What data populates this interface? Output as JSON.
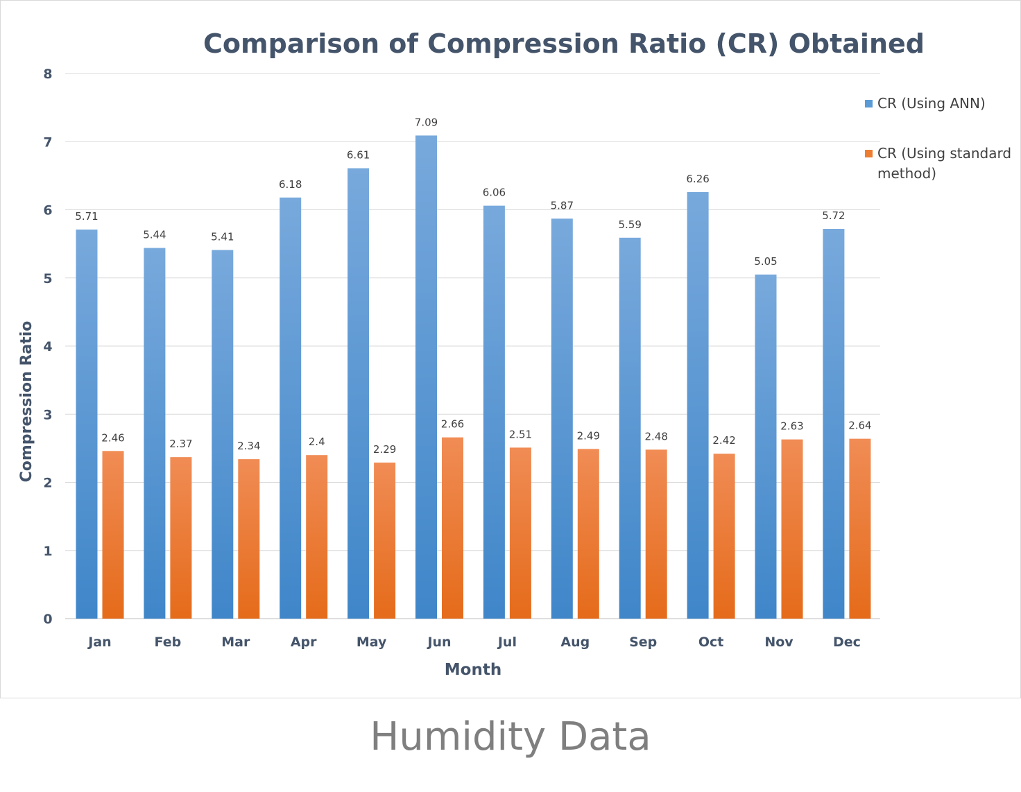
{
  "chart_data": {
    "type": "bar",
    "title": "Comparison of Compression Ratio (CR) Obtained",
    "xlabel": "Month",
    "ylabel": "Compression Ratio",
    "ylim": [
      0,
      8
    ],
    "yticks": [
      "0",
      "1",
      "2",
      "3",
      "4",
      "5",
      "6",
      "7",
      "8"
    ],
    "grid": true,
    "legend_position": "right",
    "categories": [
      "Jan",
      "Feb",
      "Mar",
      "Apr",
      "May",
      "Jun",
      "Jul",
      "Aug",
      "Sep",
      "Oct",
      "Nov",
      "Dec"
    ],
    "series": [
      {
        "name": "CR (Using ANN)",
        "color": "#5b9bd5",
        "values": [
          5.71,
          5.44,
          5.41,
          6.18,
          6.61,
          7.09,
          6.06,
          5.87,
          5.59,
          6.26,
          5.05,
          5.72
        ],
        "labels": [
          "5.71",
          "5.44",
          "5.41",
          "6.18",
          "6.61",
          "7.09",
          "6.06",
          "5.87",
          "5.59",
          "6.26",
          "5.05",
          "5.72"
        ]
      },
      {
        "name": "CR (Using standard method)",
        "name_lines": [
          "CR (Using standard",
          "method)"
        ],
        "color": "#ed7d31",
        "values": [
          2.46,
          2.37,
          2.34,
          2.4,
          2.29,
          2.66,
          2.51,
          2.49,
          2.48,
          2.42,
          2.63,
          2.64
        ],
        "labels": [
          "2.46",
          "2.37",
          "2.34",
          "2.4",
          "2.29",
          "2.66",
          "2.51",
          "2.49",
          "2.48",
          "2.42",
          "2.63",
          "2.64"
        ]
      }
    ]
  },
  "caption": "Humidity Data"
}
